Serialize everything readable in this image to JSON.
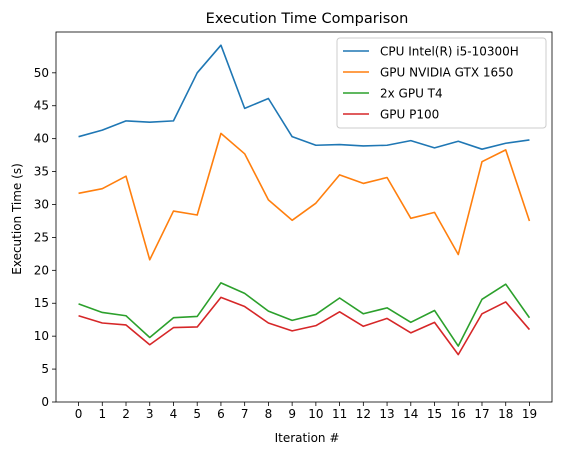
{
  "chart_data": {
    "type": "line",
    "title": "Execution Time Comparison",
    "xlabel": "Iteration #",
    "ylabel": "Execution Time (s)",
    "x": [
      0,
      1,
      2,
      3,
      4,
      5,
      6,
      7,
      8,
      9,
      10,
      11,
      12,
      13,
      14,
      15,
      16,
      17,
      18,
      19
    ],
    "x_tick_labels": [
      "0",
      "1",
      "2",
      "3",
      "4",
      "5",
      "6",
      "7",
      "8",
      "9",
      "10",
      "11",
      "12",
      "13",
      "14",
      "15",
      "16",
      "17",
      "18",
      "19"
    ],
    "y_ticks": [
      0,
      5,
      10,
      15,
      20,
      25,
      30,
      35,
      40,
      45,
      50
    ],
    "y_tick_labels": [
      "0",
      "5",
      "10",
      "15",
      "20",
      "25",
      "30",
      "35",
      "40",
      "45",
      "50"
    ],
    "xlim": [
      -0.95,
      19.95
    ],
    "ylim": [
      0,
      56.2
    ],
    "grid": false,
    "legend_position": "top-right",
    "series": [
      {
        "name": "CPU Intel(R) i5-10300H",
        "color": "#1f77b4",
        "values": [
          40.3,
          41.3,
          42.7,
          42.5,
          42.7,
          50.0,
          54.2,
          44.6,
          46.1,
          40.3,
          39.0,
          39.1,
          38.9,
          39.0,
          39.7,
          38.6,
          39.6,
          38.4,
          39.3,
          39.8
        ]
      },
      {
        "name": "GPU NVIDIA GTX 1650",
        "color": "#ff7f0e",
        "values": [
          31.7,
          32.4,
          34.3,
          21.6,
          29.0,
          28.4,
          40.8,
          37.7,
          30.7,
          27.6,
          30.2,
          34.5,
          33.2,
          34.1,
          27.9,
          28.8,
          22.4,
          36.5,
          38.3,
          27.5
        ]
      },
      {
        "name": "2x GPU T4",
        "color": "#2ca02c",
        "values": [
          14.9,
          13.6,
          13.1,
          9.8,
          12.8,
          13.0,
          18.1,
          16.5,
          13.8,
          12.4,
          13.3,
          15.8,
          13.4,
          14.3,
          12.1,
          13.9,
          8.5,
          15.6,
          17.9,
          12.8
        ]
      },
      {
        "name": "GPU P100",
        "color": "#d62728",
        "values": [
          13.1,
          12.0,
          11.7,
          8.7,
          11.3,
          11.4,
          15.9,
          14.5,
          12.0,
          10.8,
          11.6,
          13.7,
          11.5,
          12.7,
          10.5,
          12.1,
          7.2,
          13.4,
          15.2,
          11.0
        ]
      }
    ]
  }
}
